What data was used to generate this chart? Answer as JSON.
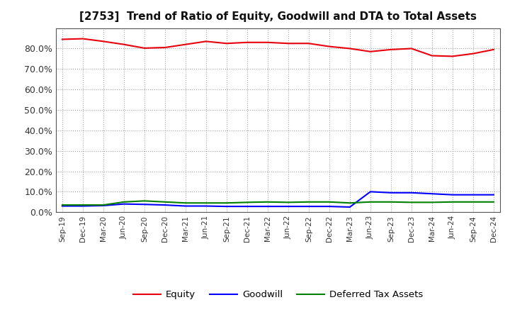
{
  "title": "[2753]  Trend of Ratio of Equity, Goodwill and DTA to Total Assets",
  "x_labels": [
    "Sep-19",
    "Dec-19",
    "Mar-20",
    "Jun-20",
    "Sep-20",
    "Dec-20",
    "Mar-21",
    "Jun-21",
    "Sep-21",
    "Dec-21",
    "Mar-22",
    "Jun-22",
    "Sep-22",
    "Dec-22",
    "Mar-23",
    "Jun-23",
    "Sep-23",
    "Dec-23",
    "Mar-24",
    "Jun-24",
    "Sep-24",
    "Dec-24"
  ],
  "equity": [
    84.5,
    84.8,
    83.5,
    82.0,
    80.2,
    80.5,
    82.0,
    83.5,
    82.5,
    83.0,
    83.0,
    82.5,
    82.5,
    81.0,
    80.0,
    78.5,
    79.5,
    80.0,
    76.5,
    76.2,
    77.5,
    79.5
  ],
  "goodwill": [
    3.0,
    3.0,
    3.2,
    4.0,
    3.8,
    3.5,
    3.0,
    3.0,
    2.8,
    2.8,
    2.8,
    2.8,
    2.8,
    2.8,
    2.5,
    10.0,
    9.5,
    9.5,
    9.0,
    8.5,
    8.5,
    8.5
  ],
  "dta": [
    3.5,
    3.5,
    3.5,
    5.0,
    5.5,
    5.0,
    4.5,
    4.5,
    4.5,
    4.8,
    5.0,
    4.8,
    5.0,
    5.0,
    4.5,
    5.0,
    5.0,
    4.8,
    4.8,
    5.0,
    5.0,
    5.0
  ],
  "equity_color": "#e8000d",
  "goodwill_color": "#0000ff",
  "dta_color": "#008000",
  "ylim_min": 0,
  "ylim_max": 90,
  "yticks": [
    0,
    10,
    20,
    30,
    40,
    50,
    60,
    70,
    80
  ],
  "background_color": "#ffffff",
  "grid_color": "#999999",
  "legend_labels": [
    "Equity",
    "Goodwill",
    "Deferred Tax Assets"
  ]
}
